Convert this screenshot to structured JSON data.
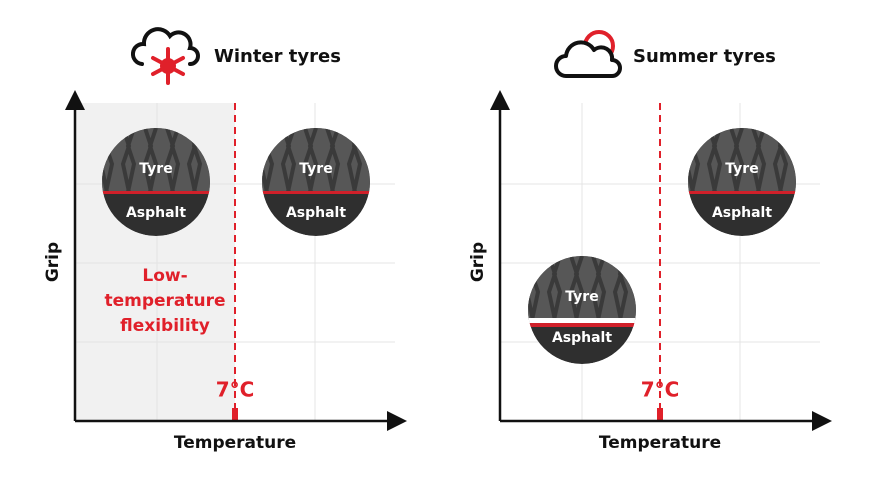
{
  "panels": [
    {
      "title": "Winter tyres",
      "y_label": "Grip",
      "x_label": "Temperature",
      "threshold": "7°C",
      "annotation": [
        "Low-",
        "temperature",
        "flexibility"
      ],
      "tyres": [
        {
          "top": "Tyre",
          "bottom": "Asphalt"
        },
        {
          "top": "Tyre",
          "bottom": "Asphalt"
        }
      ]
    },
    {
      "title": "Summer tyres",
      "y_label": "Grip",
      "x_label": "Temperature",
      "threshold": "7°C",
      "tyres": [
        {
          "top": "Tyre",
          "bottom": "Asphalt"
        },
        {
          "top": "Tyre",
          "bottom": "Asphalt"
        }
      ]
    }
  ]
}
